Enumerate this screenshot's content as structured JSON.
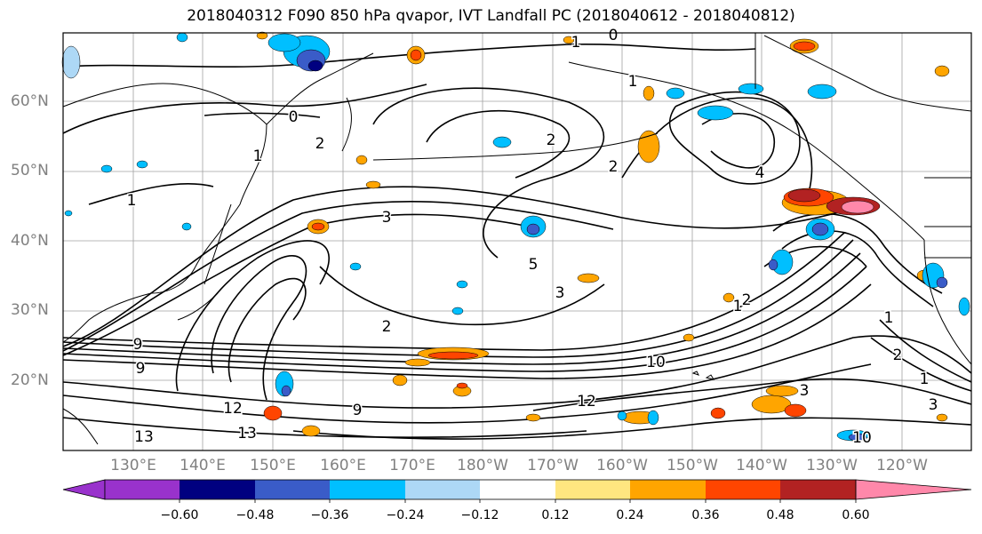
{
  "title": "2018040312 F090 850 hPa qvapor, IVT Landfall PC (2018040612 - 2018040812)",
  "map": {
    "lat_labels": [
      "60°N",
      "50°N",
      "40°N",
      "30°N",
      "20°N"
    ],
    "lon_labels": [
      "130°E",
      "140°E",
      "150°E",
      "160°E",
      "170°E",
      "180°W",
      "170°W",
      "160°W",
      "150°W",
      "140°W",
      "130°W",
      "120°W"
    ],
    "contour_labels": [
      "0",
      "0",
      "1",
      "1",
      "1",
      "1",
      "2",
      "2",
      "3",
      "3",
      "4",
      "5",
      "2",
      "2",
      "1",
      "2",
      "3",
      "9",
      "9",
      "12",
      "13",
      "13",
      "12",
      "9",
      "10",
      "10",
      "1",
      "2",
      "3",
      "1"
    ],
    "grid": "on",
    "land_outline_color": "#000000"
  },
  "colorbar": {
    "ticks": [
      "−0.60",
      "−0.48",
      "−0.36",
      "−0.24",
      "−0.12",
      "0.12",
      "0.24",
      "0.36",
      "0.48",
      "0.60"
    ],
    "colors": [
      "#9932CC",
      "#000080",
      "#3A5CC8",
      "#00BFFF",
      "#ADD8F6",
      "#FFFFFF",
      "#FFE680",
      "#FFA500",
      "#FF4500",
      "#B22222",
      "#FF88AA"
    ],
    "extend": "both"
  }
}
